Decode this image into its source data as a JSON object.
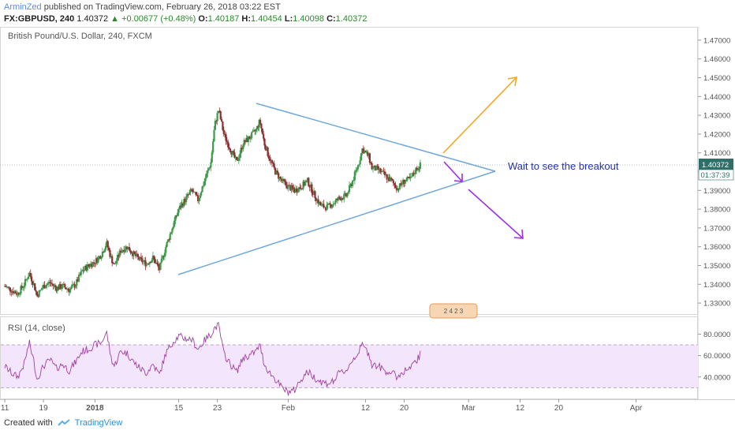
{
  "header": {
    "author": "ArminZed",
    "published": "published on TradingView.com, February 26, 2018 03:22 EST",
    "symbol": "FX:GBPUSD, 240",
    "last": "1.40372",
    "change_arrow": "▲",
    "change": "+0.00677 (+0.48%)",
    "o_label": "O:",
    "o_val": "1.40187",
    "h_label": "H:",
    "h_val": "1.40454",
    "l_label": "L:",
    "l_val": "1.40098",
    "c_label": "C:",
    "c_val": "1.40372"
  },
  "main_pane": {
    "title": "British Pound/U.S. Dollar, 240, FXCM",
    "price_tag": "1.40372",
    "countdown": "01:37:39",
    "annotation": "Wait to see the breakout",
    "events_badge": "2 4 2 3"
  },
  "rsi_pane": {
    "title": "RSI (14, close)"
  },
  "footer": {
    "created_with": "Created with",
    "brand": "TradingView"
  },
  "colors": {
    "up_candle": "#3c9a4a",
    "down_candle": "#8b2f2f",
    "trendline": "#6fa8dc",
    "bull_arrow": "#f5a623",
    "bear_arrow": "#9b30e6",
    "annotation_text": "#2233aa",
    "rsi_line": "#a040a0",
    "rsi_band": "#f3e5fb",
    "price_tag": "#2f6f6a"
  },
  "chart_data": [
    {
      "type": "candlestick",
      "title": "British Pound/U.S. Dollar, 240, FXCM",
      "ylim": [
        1.325,
        1.475
      ],
      "y_ticks": [
        "1.47000",
        "1.46000",
        "1.45000",
        "1.44000",
        "1.43000",
        "1.42000",
        "1.41000",
        "1.40000",
        "1.39000",
        "1.38000",
        "1.37000",
        "1.36000",
        "1.35000",
        "1.34000",
        "1.33000"
      ],
      "x_ticks": [
        "11",
        "19",
        "2018",
        "15",
        "23",
        "Feb",
        "12",
        "20",
        "Mar",
        "12",
        "20",
        "Apr"
      ],
      "x_tick_days": [
        0,
        6,
        14,
        27,
        33,
        44,
        56,
        62,
        72,
        80,
        86,
        98
      ],
      "x_range_days": [
        -0.5,
        107
      ],
      "last_price": 1.40372,
      "close_path": [
        [
          0,
          1.339
        ],
        [
          1,
          1.337
        ],
        [
          2,
          1.335
        ],
        [
          3,
          1.34
        ],
        [
          3.8,
          1.346
        ],
        [
          4.5,
          1.34
        ],
        [
          5,
          1.334
        ],
        [
          6,
          1.339
        ],
        [
          7,
          1.341
        ],
        [
          8,
          1.338
        ],
        [
          9,
          1.339
        ],
        [
          10,
          1.337
        ],
        [
          11,
          1.34
        ],
        [
          12,
          1.347
        ],
        [
          13,
          1.35
        ],
        [
          14,
          1.352
        ],
        [
          15,
          1.356
        ],
        [
          15.8,
          1.362
        ],
        [
          16.5,
          1.354
        ],
        [
          17,
          1.35
        ],
        [
          18,
          1.358
        ],
        [
          19,
          1.36
        ],
        [
          20,
          1.356
        ],
        [
          21,
          1.353
        ],
        [
          22,
          1.351
        ],
        [
          23,
          1.354
        ],
        [
          24,
          1.348
        ],
        [
          25,
          1.36
        ],
        [
          26,
          1.37
        ],
        [
          27,
          1.38
        ],
        [
          28,
          1.385
        ],
        [
          29,
          1.39
        ],
        [
          30,
          1.385
        ],
        [
          31,
          1.395
        ],
        [
          32,
          1.405
        ],
        [
          32.6,
          1.425
        ],
        [
          33.2,
          1.433
        ],
        [
          34,
          1.42
        ],
        [
          35,
          1.412
        ],
        [
          36,
          1.405
        ],
        [
          37,
          1.415
        ],
        [
          38,
          1.418
        ],
        [
          39,
          1.422
        ],
        [
          39.6,
          1.427
        ],
        [
          40.3,
          1.415
        ],
        [
          41,
          1.408
        ],
        [
          42,
          1.4
        ],
        [
          43,
          1.395
        ],
        [
          44,
          1.392
        ],
        [
          45,
          1.39
        ],
        [
          46,
          1.392
        ],
        [
          47,
          1.395
        ],
        [
          48,
          1.388
        ],
        [
          49,
          1.382
        ],
        [
          50,
          1.381
        ],
        [
          51,
          1.383
        ],
        [
          52,
          1.386
        ],
        [
          53,
          1.387
        ],
        [
          54,
          1.395
        ],
        [
          55,
          1.405
        ],
        [
          55.5,
          1.412
        ],
        [
          56.5,
          1.408
        ],
        [
          57,
          1.402
        ],
        [
          58,
          1.401
        ],
        [
          59,
          1.398
        ],
        [
          60,
          1.395
        ],
        [
          61,
          1.391
        ],
        [
          62,
          1.395
        ],
        [
          63,
          1.396
        ],
        [
          64,
          1.402
        ],
        [
          64.6,
          1.4037
        ]
      ]
    },
    {
      "type": "line",
      "title": "RSI (14, close)",
      "ylim": [
        20,
        95
      ],
      "y_ticks": [
        "80.0000",
        "60.0000",
        "40.0000"
      ],
      "bands": [
        30,
        70
      ],
      "x_range_days": [
        -0.5,
        107
      ],
      "values_path": [
        [
          0,
          50
        ],
        [
          1,
          44
        ],
        [
          2,
          40
        ],
        [
          3,
          52
        ],
        [
          3.8,
          72
        ],
        [
          4.5,
          55
        ],
        [
          5,
          38
        ],
        [
          6,
          50
        ],
        [
          7,
          56
        ],
        [
          8,
          48
        ],
        [
          9,
          52
        ],
        [
          10,
          46
        ],
        [
          11,
          54
        ],
        [
          12,
          64
        ],
        [
          13,
          66
        ],
        [
          14,
          70
        ],
        [
          15,
          72
        ],
        [
          15.8,
          82
        ],
        [
          16.5,
          58
        ],
        [
          17,
          50
        ],
        [
          18,
          64
        ],
        [
          19,
          62
        ],
        [
          20,
          54
        ],
        [
          21,
          48
        ],
        [
          22,
          44
        ],
        [
          23,
          52
        ],
        [
          24,
          42
        ],
        [
          25,
          62
        ],
        [
          26,
          72
        ],
        [
          27,
          78
        ],
        [
          28,
          76
        ],
        [
          29,
          75
        ],
        [
          30,
          66
        ],
        [
          31,
          74
        ],
        [
          32,
          80
        ],
        [
          32.6,
          86
        ],
        [
          33.2,
          88
        ],
        [
          34,
          62
        ],
        [
          35,
          52
        ],
        [
          36,
          45
        ],
        [
          37,
          58
        ],
        [
          38,
          60
        ],
        [
          39,
          64
        ],
        [
          39.6,
          70
        ],
        [
          40.3,
          52
        ],
        [
          41,
          45
        ],
        [
          42,
          38
        ],
        [
          43,
          30
        ],
        [
          44,
          26
        ],
        [
          45,
          28
        ],
        [
          46,
          38
        ],
        [
          47,
          45
        ],
        [
          48,
          40
        ],
        [
          49,
          36
        ],
        [
          50,
          34
        ],
        [
          51,
          36
        ],
        [
          52,
          44
        ],
        [
          53,
          46
        ],
        [
          54,
          56
        ],
        [
          55,
          64
        ],
        [
          55.5,
          70
        ],
        [
          56.5,
          62
        ],
        [
          57,
          52
        ],
        [
          58,
          50
        ],
        [
          59,
          46
        ],
        [
          60,
          44
        ],
        [
          61,
          40
        ],
        [
          62,
          46
        ],
        [
          63,
          48
        ],
        [
          64,
          56
        ],
        [
          64.6,
          62
        ]
      ]
    }
  ]
}
